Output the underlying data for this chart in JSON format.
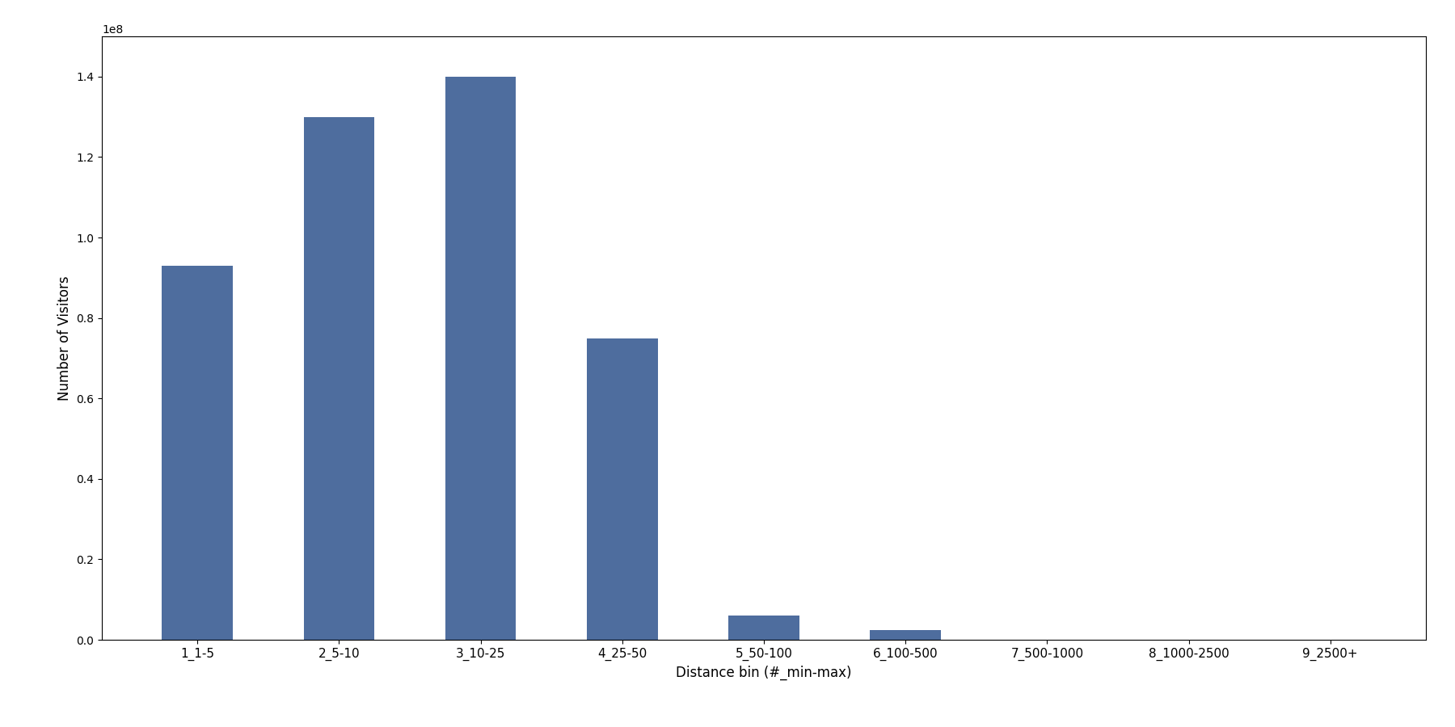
{
  "categories": [
    "1_1-5",
    "2_5-10",
    "3_10-25",
    "4_25-50",
    "5_50-100",
    "6_100-500",
    "7_500-1000",
    "8_1000-2500",
    "9_2500+"
  ],
  "values": [
    93000000,
    130000000,
    140000000,
    75000000,
    6000000,
    2500000,
    0,
    0,
    0
  ],
  "bar_color": "#4e6d9e",
  "xlabel": "Distance bin (#_min-max)",
  "ylabel": "Number of Visitors",
  "ylim": [
    0,
    150000000
  ],
  "figsize": [
    18.0,
    9.0
  ],
  "dpi": 100,
  "bar_width": 0.5,
  "tick_fontsize": 11,
  "label_fontsize": 12
}
